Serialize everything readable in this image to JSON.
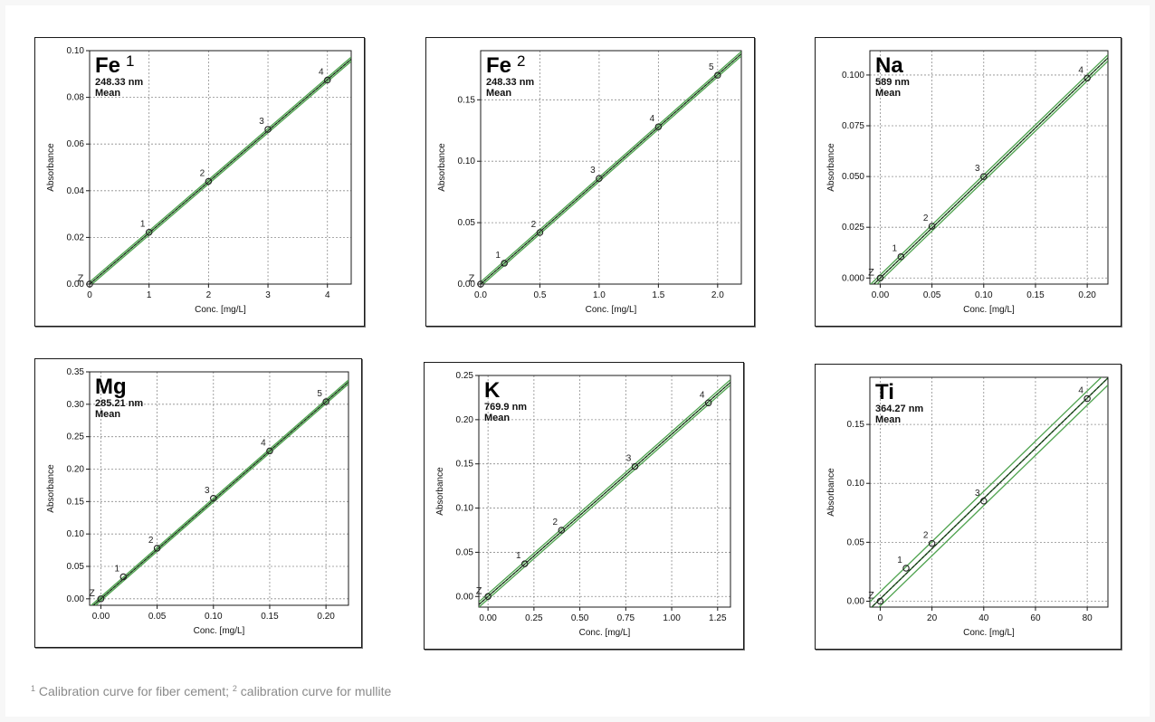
{
  "footnote": {
    "mark1": "1",
    "text1": "Calibration curve for fiber cement;",
    "mark2": "2",
    "text2": "calibration curve for mullite"
  },
  "colors": {
    "fit_line": "#4fa34f",
    "grid": "#8c8c8c",
    "axis": "#1a1a1a"
  },
  "chart_data": [
    {
      "type": "scatter",
      "element": "Fe",
      "superscript": "1",
      "wavelength": "248.33 nm",
      "statistic": "Mean",
      "xlabel": "Conc. [mg/L]",
      "ylabel": "Absorbance",
      "xlim": [
        0,
        4.4
      ],
      "ylim": [
        0,
        0.1
      ],
      "xticks": [
        "0",
        "1",
        "2",
        "3",
        "4"
      ],
      "xtick_values": [
        0,
        1,
        2,
        3,
        4
      ],
      "yticks": [
        "0.00",
        "0.02",
        "0.04",
        "0.06",
        "0.08",
        "0.10"
      ],
      "ytick_values": [
        0,
        0.02,
        0.04,
        0.06,
        0.08,
        0.1
      ],
      "grid": true,
      "points": [
        {
          "label": "Z",
          "x": 0,
          "y": 0.0
        },
        {
          "label": "1",
          "x": 1,
          "y": 0.0222
        },
        {
          "label": "2",
          "x": 2,
          "y": 0.044
        },
        {
          "label": "3",
          "x": 3,
          "y": 0.0663
        },
        {
          "label": "4",
          "x": 4,
          "y": 0.0874
        }
      ],
      "fit": {
        "slope": 0.0219,
        "intercept": 0.0
      },
      "band": 0.0009
    },
    {
      "type": "scatter",
      "element": "Fe",
      "superscript": "2",
      "wavelength": "248.33 nm",
      "statistic": "Mean",
      "xlabel": "Conc. [mg/L]",
      "ylabel": "Absorbance",
      "xlim": [
        0,
        2.2
      ],
      "ylim": [
        0,
        0.19
      ],
      "xticks": [
        "0.0",
        "0.5",
        "1.0",
        "1.5",
        "2.0"
      ],
      "xtick_values": [
        0,
        0.5,
        1,
        1.5,
        2
      ],
      "yticks": [
        "0.00",
        "0.05",
        "0.10",
        "0.15"
      ],
      "ytick_values": [
        0,
        0.05,
        0.1,
        0.15
      ],
      "grid": true,
      "points": [
        {
          "label": "Z",
          "x": 0,
          "y": 0.0
        },
        {
          "label": "1",
          "x": 0.2,
          "y": 0.017
        },
        {
          "label": "2",
          "x": 0.5,
          "y": 0.042
        },
        {
          "label": "3",
          "x": 1.0,
          "y": 0.086
        },
        {
          "label": "4",
          "x": 1.5,
          "y": 0.128
        },
        {
          "label": "5",
          "x": 2.0,
          "y": 0.17
        }
      ],
      "fit": {
        "slope": 0.0852,
        "intercept": 0.0
      },
      "band": 0.0018
    },
    {
      "type": "scatter",
      "element": "Na",
      "superscript": "",
      "wavelength": "589 nm",
      "statistic": "Mean",
      "xlabel": "Conc. [mg/L]",
      "ylabel": "Absorbance",
      "xlim": [
        -0.01,
        0.22
      ],
      "ylim": [
        -0.003,
        0.112
      ],
      "xticks": [
        "0.00",
        "0.05",
        "0.10",
        "0.15",
        "0.20"
      ],
      "xtick_values": [
        0,
        0.05,
        0.1,
        0.15,
        0.2
      ],
      "yticks": [
        "0.000",
        "0.025",
        "0.050",
        "0.075",
        "0.100"
      ],
      "ytick_values": [
        0,
        0.025,
        0.05,
        0.075,
        0.1
      ],
      "grid": true,
      "points": [
        {
          "label": "Z",
          "x": 0,
          "y": 0.0
        },
        {
          "label": "1",
          "x": 0.02,
          "y": 0.0105
        },
        {
          "label": "2",
          "x": 0.05,
          "y": 0.0255
        },
        {
          "label": "3",
          "x": 0.1,
          "y": 0.05
        },
        {
          "label": "4",
          "x": 0.2,
          "y": 0.0985
        }
      ],
      "fit": {
        "slope": 0.493,
        "intercept": 0.0
      },
      "band": 0.0015
    },
    {
      "type": "scatter",
      "element": "Mg",
      "superscript": "",
      "wavelength": "285.21 nm",
      "statistic": "Mean",
      "xlabel": "Conc. [mg/L]",
      "ylabel": "Absorbance",
      "xlim": [
        -0.01,
        0.22
      ],
      "ylim": [
        -0.01,
        0.35
      ],
      "xticks": [
        "0.00",
        "0.05",
        "0.10",
        "0.15",
        "0.20"
      ],
      "xtick_values": [
        0,
        0.05,
        0.1,
        0.15,
        0.2
      ],
      "yticks": [
        "0.00",
        "0.05",
        "0.10",
        "0.15",
        "0.20",
        "0.25",
        "0.30",
        "0.35"
      ],
      "ytick_values": [
        0,
        0.05,
        0.1,
        0.15,
        0.2,
        0.25,
        0.3,
        0.35
      ],
      "grid": true,
      "points": [
        {
          "label": "Z",
          "x": 0,
          "y": 0.0
        },
        {
          "label": "1",
          "x": 0.02,
          "y": 0.034
        },
        {
          "label": "2",
          "x": 0.05,
          "y": 0.078
        },
        {
          "label": "3",
          "x": 0.1,
          "y": 0.155
        },
        {
          "label": "4",
          "x": 0.15,
          "y": 0.228
        },
        {
          "label": "5",
          "x": 0.2,
          "y": 0.304
        }
      ],
      "fit": {
        "slope": 1.52,
        "intercept": 0.0
      },
      "band": 0.003
    },
    {
      "type": "scatter",
      "element": "K",
      "superscript": "",
      "wavelength": "769.9 nm",
      "statistic": "Mean",
      "xlabel": "Conc. [mg/L]",
      "ylabel": "Absorbance",
      "xlim": [
        -0.05,
        1.32
      ],
      "ylim": [
        -0.012,
        0.25
      ],
      "xticks": [
        "0.00",
        "0.25",
        "0.50",
        "0.75",
        "1.00",
        "1.25"
      ],
      "xtick_values": [
        0,
        0.25,
        0.5,
        0.75,
        1,
        1.25
      ],
      "yticks": [
        "0.00",
        "0.05",
        "0.10",
        "0.15",
        "0.20",
        "0.25"
      ],
      "ytick_values": [
        0,
        0.05,
        0.1,
        0.15,
        0.2,
        0.25
      ],
      "grid": true,
      "points": [
        {
          "label": "Z",
          "x": 0,
          "y": 0.0
        },
        {
          "label": "1",
          "x": 0.2,
          "y": 0.037
        },
        {
          "label": "2",
          "x": 0.4,
          "y": 0.075
        },
        {
          "label": "3",
          "x": 0.8,
          "y": 0.147
        },
        {
          "label": "4",
          "x": 1.2,
          "y": 0.219
        }
      ],
      "fit": {
        "slope": 0.1835,
        "intercept": 0.0
      },
      "band": 0.003
    },
    {
      "type": "scatter",
      "element": "Ti",
      "superscript": "",
      "wavelength": "364.27 nm",
      "statistic": "Mean",
      "xlabel": "Conc. [mg/L]",
      "ylabel": "Absorbance",
      "xlim": [
        -4,
        88
      ],
      "ylim": [
        -0.005,
        0.19
      ],
      "xticks": [
        "0",
        "20",
        "40",
        "60",
        "80"
      ],
      "xtick_values": [
        0,
        20,
        40,
        60,
        80
      ],
      "yticks": [
        "0.00",
        "0.05",
        "0.10",
        "0.15"
      ],
      "ytick_values": [
        0,
        0.05,
        0.1,
        0.15
      ],
      "grid": true,
      "points": [
        {
          "label": "Z",
          "x": 0,
          "y": 0.0
        },
        {
          "label": "1",
          "x": 10,
          "y": 0.028
        },
        {
          "label": "2",
          "x": 20,
          "y": 0.049
        },
        {
          "label": "3",
          "x": 40,
          "y": 0.085
        },
        {
          "label": "4",
          "x": 80,
          "y": 0.172
        }
      ],
      "fit": {
        "slope": 0.00213,
        "intercept": 0.002
      },
      "band": 0.006
    }
  ]
}
